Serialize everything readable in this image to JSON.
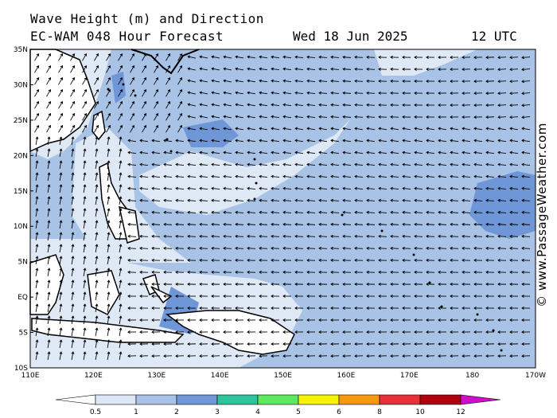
{
  "header": {
    "title": "Wave Height (m) and Direction",
    "subtitle": "EC-WAM 048 Hour Forecast",
    "date": "Wed 18 Jun 2025",
    "time": "12 UTC"
  },
  "credit": "© www.PassageWeather.com",
  "axes": {
    "lat_labels": [
      "35N",
      "30N",
      "25N",
      "20N",
      "15N",
      "10N",
      "5N",
      "EQ",
      "5S",
      "10S"
    ],
    "lon_labels": [
      "110E",
      "120E",
      "130E",
      "140E",
      "150E",
      "160E",
      "170E",
      "180",
      "170W"
    ]
  },
  "legend": {
    "labels": [
      "0.5",
      "1",
      "2",
      "3",
      "4",
      "5",
      "6",
      "8",
      "10",
      "12"
    ],
    "colors": [
      "#ffffff",
      "#dde7f5",
      "#a9c3e6",
      "#6f96d6",
      "#2ec39a",
      "#5ee85e",
      "#f6f300",
      "#f59a10",
      "#e8303a",
      "#b00010",
      "#d010c8"
    ]
  },
  "colors": {
    "sea_light": "#dfe9f6",
    "sea_mid": "#a9c3e6",
    "sea_dark": "#6f96d6",
    "land": "#ffffff"
  }
}
